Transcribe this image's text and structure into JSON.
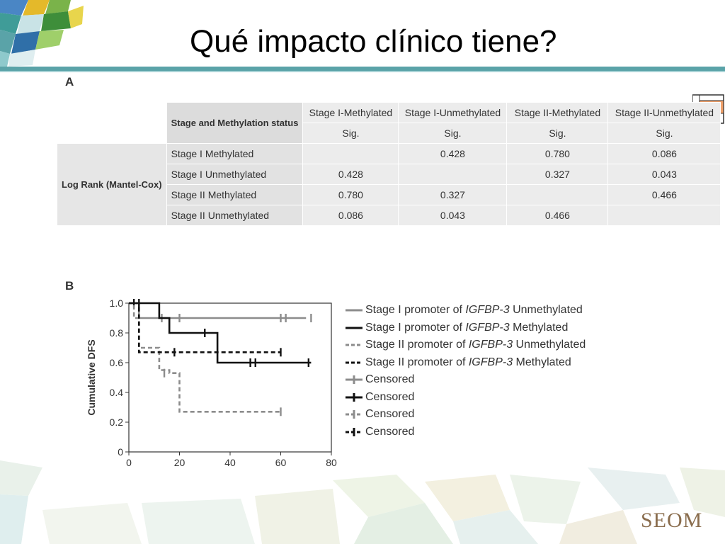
{
  "title": "Qué impacto clínico tiene?",
  "panel_a": {
    "label": "A",
    "header_left": "Stage and Methylation status",
    "columns": [
      "Stage I-Methylated",
      "Stage I-Unmethylated",
      "Stage II-Methylated",
      "Stage II-Unmethylated"
    ],
    "subheader": "Sig.",
    "row_group_label": "Log Rank (Mantel-Cox)",
    "rows": [
      {
        "label": "Stage I Methylated",
        "values": [
          "",
          "0.428",
          "0.780",
          "0.086"
        ]
      },
      {
        "label": "Stage I Unmethylated",
        "values": [
          "0.428",
          "",
          "0.327",
          "0.043"
        ]
      },
      {
        "label": "Stage II Methylated",
        "values": [
          "0.780",
          "0.327",
          "",
          "0.466"
        ]
      },
      {
        "label": "Stage II Unmethylated",
        "values": [
          "0.086",
          "0.043",
          "0.466",
          ""
        ]
      }
    ]
  },
  "panel_b": {
    "label": "B",
    "legend": [
      {
        "prefix": "Stage I promoter of ",
        "gene": "IGFBP-3",
        "suffix": " Unmethylated",
        "style": "solid-gray"
      },
      {
        "prefix": "Stage I promoter of ",
        "gene": "IGFBP-3",
        "suffix": " Methylated",
        "style": "solid-black"
      },
      {
        "prefix": "Stage II promoter of ",
        "gene": "IGFBP-3",
        "suffix": " Unmethylated",
        "style": "dashed-gray"
      },
      {
        "prefix": "Stage II promoter of ",
        "gene": "IGFBP-3",
        "suffix": " Methylated",
        "style": "dashed-black"
      },
      {
        "prefix": "Censored",
        "gene": "",
        "suffix": "",
        "style": "censor-gray"
      },
      {
        "prefix": "Censored",
        "gene": "",
        "suffix": "",
        "style": "censor-black"
      },
      {
        "prefix": "Censored",
        "gene": "",
        "suffix": "",
        "style": "censor-dashed-gray"
      },
      {
        "prefix": "Censored",
        "gene": "",
        "suffix": "",
        "style": "censor-dashed-black"
      }
    ]
  },
  "chart_data": {
    "type": "line",
    "title": "",
    "xlabel": "",
    "ylabel": "Cumulative DFS",
    "xlim": [
      0,
      80
    ],
    "ylim": [
      0,
      1.0
    ],
    "xticks": [
      0,
      20,
      40,
      60,
      80
    ],
    "yticks": [
      0,
      0.2,
      0.4,
      0.6,
      0.8,
      1.0
    ],
    "ytick_labels": [
      "0",
      "0.2",
      "0.4",
      "0.6",
      "0.8",
      "1.0"
    ],
    "grid": false,
    "series": [
      {
        "color": "#8c8c8c",
        "dash": false,
        "steps": [
          [
            0,
            1.0
          ],
          [
            4,
            1.0
          ],
          [
            4,
            0.9
          ],
          [
            70,
            0.9
          ]
        ],
        "censored": [
          [
            13,
            0.9
          ],
          [
            20,
            0.9
          ],
          [
            60,
            0.9
          ],
          [
            62,
            0.9
          ],
          [
            72,
            0.9
          ]
        ]
      },
      {
        "color": "#111111",
        "dash": false,
        "steps": [
          [
            0,
            1.0
          ],
          [
            12,
            1.0
          ],
          [
            12,
            0.9
          ],
          [
            16,
            0.9
          ],
          [
            16,
            0.8
          ],
          [
            35,
            0.8
          ],
          [
            35,
            0.6
          ],
          [
            72,
            0.6
          ]
        ],
        "censored": [
          [
            2,
            1.0
          ],
          [
            30,
            0.8
          ],
          [
            48,
            0.6
          ],
          [
            50,
            0.6
          ],
          [
            71,
            0.6
          ]
        ]
      },
      {
        "color": "#8c8c8c",
        "dash": true,
        "steps": [
          [
            0,
            1.0
          ],
          [
            2,
            1.0
          ],
          [
            2,
            0.9
          ],
          [
            4,
            0.9
          ],
          [
            4,
            0.7
          ],
          [
            12,
            0.7
          ],
          [
            12,
            0.55
          ],
          [
            16,
            0.55
          ],
          [
            16,
            0.53
          ],
          [
            20,
            0.53
          ],
          [
            20,
            0.27
          ],
          [
            60,
            0.27
          ]
        ],
        "censored": [
          [
            14,
            0.53
          ],
          [
            60,
            0.27
          ]
        ]
      },
      {
        "color": "#111111",
        "dash": true,
        "steps": [
          [
            0,
            1.0
          ],
          [
            4,
            1.0
          ],
          [
            4,
            0.67
          ],
          [
            60,
            0.67
          ]
        ],
        "censored": [
          [
            4,
            1.0
          ],
          [
            18,
            0.67
          ],
          [
            60,
            0.67
          ]
        ]
      }
    ]
  },
  "logo": "SEOM"
}
